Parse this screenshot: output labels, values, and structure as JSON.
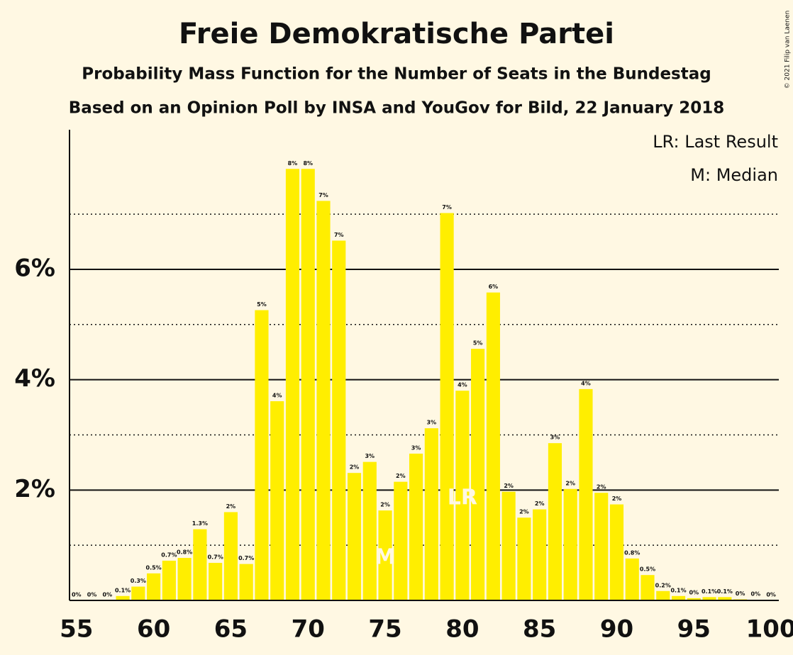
{
  "chart_data": {
    "type": "bar",
    "title": "Freie Demokratische Partei",
    "subtitle": "Probability Mass Function for the Number of Seats in the Bundestag",
    "subtitle2": "Based on an Opinion Poll by INSA and YouGov for Bild, 22 January 2018",
    "copyright": "© 2021 Filip van Laenen",
    "legend": [
      "LR: Last Result",
      "M: Median"
    ],
    "color": "#ffee00",
    "x": [
      55,
      56,
      57,
      58,
      59,
      60,
      61,
      62,
      63,
      64,
      65,
      66,
      67,
      68,
      69,
      70,
      71,
      72,
      73,
      74,
      75,
      76,
      77,
      78,
      79,
      80,
      81,
      82,
      83,
      84,
      85,
      86,
      87,
      88,
      89,
      90,
      91,
      92,
      93,
      94,
      95,
      96,
      97,
      98,
      99,
      100
    ],
    "values": [
      0,
      0,
      0,
      0.08,
      0.25,
      0.49,
      0.72,
      0.77,
      1.29,
      0.68,
      1.6,
      0.66,
      5.26,
      3.61,
      7.82,
      7.82,
      7.24,
      6.52,
      2.31,
      2.51,
      1.63,
      2.15,
      2.66,
      3.12,
      7.02,
      3.8,
      4.56,
      5.58,
      1.97,
      1.5,
      1.65,
      2.85,
      2.02,
      3.83,
      1.95,
      1.74,
      0.76,
      0.46,
      0.17,
      0.08,
      0.04,
      0.06,
      0.06,
      0.02,
      0.01,
      0
    ],
    "value_labels": [
      "0%",
      "0%",
      "0%",
      "0.1%",
      "0.3%",
      "0.5%",
      "0.7%",
      "0.8%",
      "1.3%",
      "0.7%",
      "2%",
      "0.7%",
      "5%",
      "4%",
      "8%",
      "8%",
      "7%",
      "7%",
      "2%",
      "3%",
      "2%",
      "2%",
      "3%",
      "3%",
      "7%",
      "4%",
      "5%",
      "6%",
      "2%",
      "2%",
      "2%",
      "3%",
      "2%",
      "4%",
      "2%",
      "2%",
      "0.8%",
      "0.5%",
      "0.2%",
      "0.1%",
      "0%",
      "0.1%",
      "0.1%",
      "0%",
      "0%",
      "0%"
    ],
    "markers": [
      {
        "x": 75,
        "label": "M"
      },
      {
        "x": 80,
        "label": "LR"
      }
    ],
    "xlim": [
      54.55,
      100.5
    ],
    "xticks": [
      55,
      60,
      65,
      70,
      75,
      80,
      85,
      90,
      95,
      100
    ],
    "ylim": [
      0,
      8.53
    ],
    "yticks": [
      {
        "value": 2,
        "label": "2%"
      },
      {
        "value": 4,
        "label": "4%"
      },
      {
        "value": 6,
        "label": "6%"
      }
    ],
    "minor_yticks": [
      1,
      3,
      5,
      7
    ],
    "grid": true
  }
}
